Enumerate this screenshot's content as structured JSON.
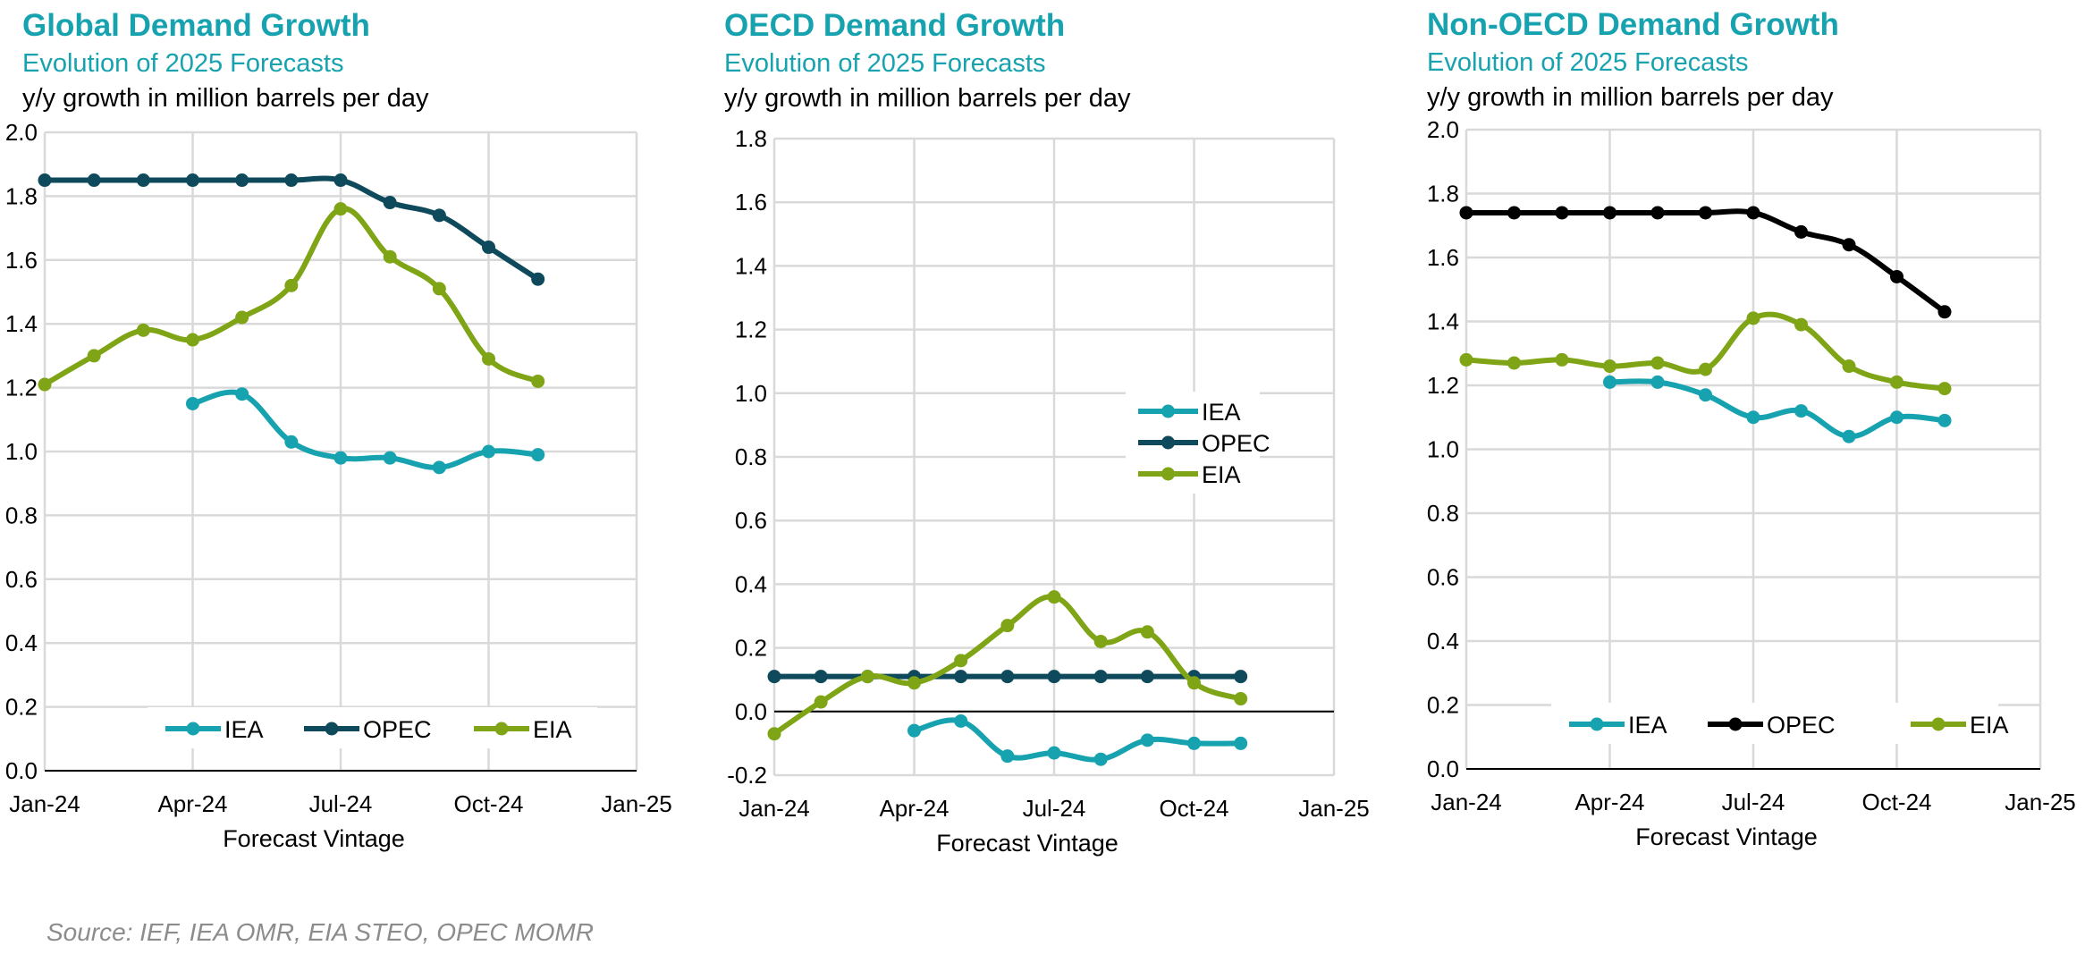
{
  "source": "Source: IEF, IEA OMR, EIA STEO, OPEC MOMR",
  "colors": {
    "IEA": "#17a2b0",
    "OPEC": "#0f4a5c",
    "OPEC_nonoecd": "#000000",
    "EIA": "#7fa516"
  },
  "chart_data": [
    {
      "type": "line",
      "title": "Global Demand Growth",
      "subtitle": "Evolution of 2025 Forecasts",
      "unit_label": "y/y growth in million barrels per day",
      "xlabel": "Forecast Vintage",
      "ylabel": "",
      "ylim": [
        0,
        2.0
      ],
      "y_ticks": [
        "0.0",
        "0.2",
        "0.4",
        "0.6",
        "0.8",
        "1.0",
        "1.2",
        "1.4",
        "1.6",
        "1.8",
        "2.0"
      ],
      "x_ticks": [
        "Jan-24",
        "Apr-24",
        "Jul-24",
        "Oct-24",
        "Jan-25"
      ],
      "legend": [
        "IEA",
        "OPEC",
        "EIA"
      ],
      "legend_position": "bottom",
      "series": [
        {
          "name": "IEA",
          "start_month": 3,
          "values": [
            1.15,
            1.18,
            1.03,
            0.98,
            0.98,
            0.95,
            1.0,
            0.99
          ]
        },
        {
          "name": "OPEC",
          "start_month": 0,
          "values": [
            1.85,
            1.85,
            1.85,
            1.85,
            1.85,
            1.85,
            1.85,
            1.78,
            1.74,
            1.64,
            1.54
          ]
        },
        {
          "name": "EIA",
          "start_month": 0,
          "values": [
            1.21,
            1.3,
            1.38,
            1.35,
            1.42,
            1.52,
            1.76,
            1.61,
            1.51,
            1.29,
            1.22
          ]
        }
      ]
    },
    {
      "type": "line",
      "title": "OECD Demand Growth",
      "subtitle": "Evolution of 2025 Forecasts",
      "unit_label": "y/y growth in million barrels per day",
      "xlabel": "Forecast Vintage",
      "ylabel": "",
      "ylim": [
        -0.2,
        1.8
      ],
      "y_ticks": [
        "-0.2",
        "0.0",
        "0.2",
        "0.4",
        "0.6",
        "0.8",
        "1.0",
        "1.2",
        "1.4",
        "1.6",
        "1.8"
      ],
      "x_ticks": [
        "Jan-24",
        "Apr-24",
        "Jul-24",
        "Oct-24",
        "Jan-25"
      ],
      "legend": [
        "IEA",
        "OPEC",
        "EIA"
      ],
      "legend_position": "center-right",
      "series": [
        {
          "name": "IEA",
          "start_month": 3,
          "values": [
            -0.06,
            -0.03,
            -0.14,
            -0.13,
            -0.15,
            -0.09,
            -0.1,
            -0.1
          ]
        },
        {
          "name": "OPEC",
          "start_month": 0,
          "values": [
            0.11,
            0.11,
            0.11,
            0.11,
            0.11,
            0.11,
            0.11,
            0.11,
            0.11,
            0.11,
            0.11
          ]
        },
        {
          "name": "EIA",
          "start_month": 0,
          "values": [
            -0.07,
            0.03,
            0.11,
            0.09,
            0.16,
            0.27,
            0.36,
            0.22,
            0.25,
            0.09,
            0.04
          ]
        }
      ]
    },
    {
      "type": "line",
      "title": "Non-OECD Demand Growth",
      "subtitle": "Evolution of 2025 Forecasts",
      "unit_label": "y/y growth in million barrels per day",
      "xlabel": "Forecast Vintage",
      "ylabel": "",
      "ylim": [
        0,
        2.0
      ],
      "y_ticks": [
        "0.0",
        "0.2",
        "0.4",
        "0.6",
        "0.8",
        "1.0",
        "1.2",
        "1.4",
        "1.6",
        "1.8",
        "2.0"
      ],
      "x_ticks": [
        "Jan-24",
        "Apr-24",
        "Jul-24",
        "Oct-24",
        "Jan-25"
      ],
      "legend": [
        "IEA",
        "OPEC",
        "EIA"
      ],
      "legend_position": "bottom",
      "series": [
        {
          "name": "IEA",
          "start_month": 3,
          "values": [
            1.21,
            1.21,
            1.17,
            1.1,
            1.12,
            1.04,
            1.1,
            1.09
          ]
        },
        {
          "name": "OPEC",
          "start_month": 0,
          "values": [
            1.74,
            1.74,
            1.74,
            1.74,
            1.74,
            1.74,
            1.74,
            1.68,
            1.64,
            1.54,
            1.43
          ]
        },
        {
          "name": "EIA",
          "start_month": 0,
          "values": [
            1.28,
            1.27,
            1.28,
            1.26,
            1.27,
            1.25,
            1.41,
            1.39,
            1.26,
            1.21,
            1.19
          ]
        }
      ]
    }
  ]
}
